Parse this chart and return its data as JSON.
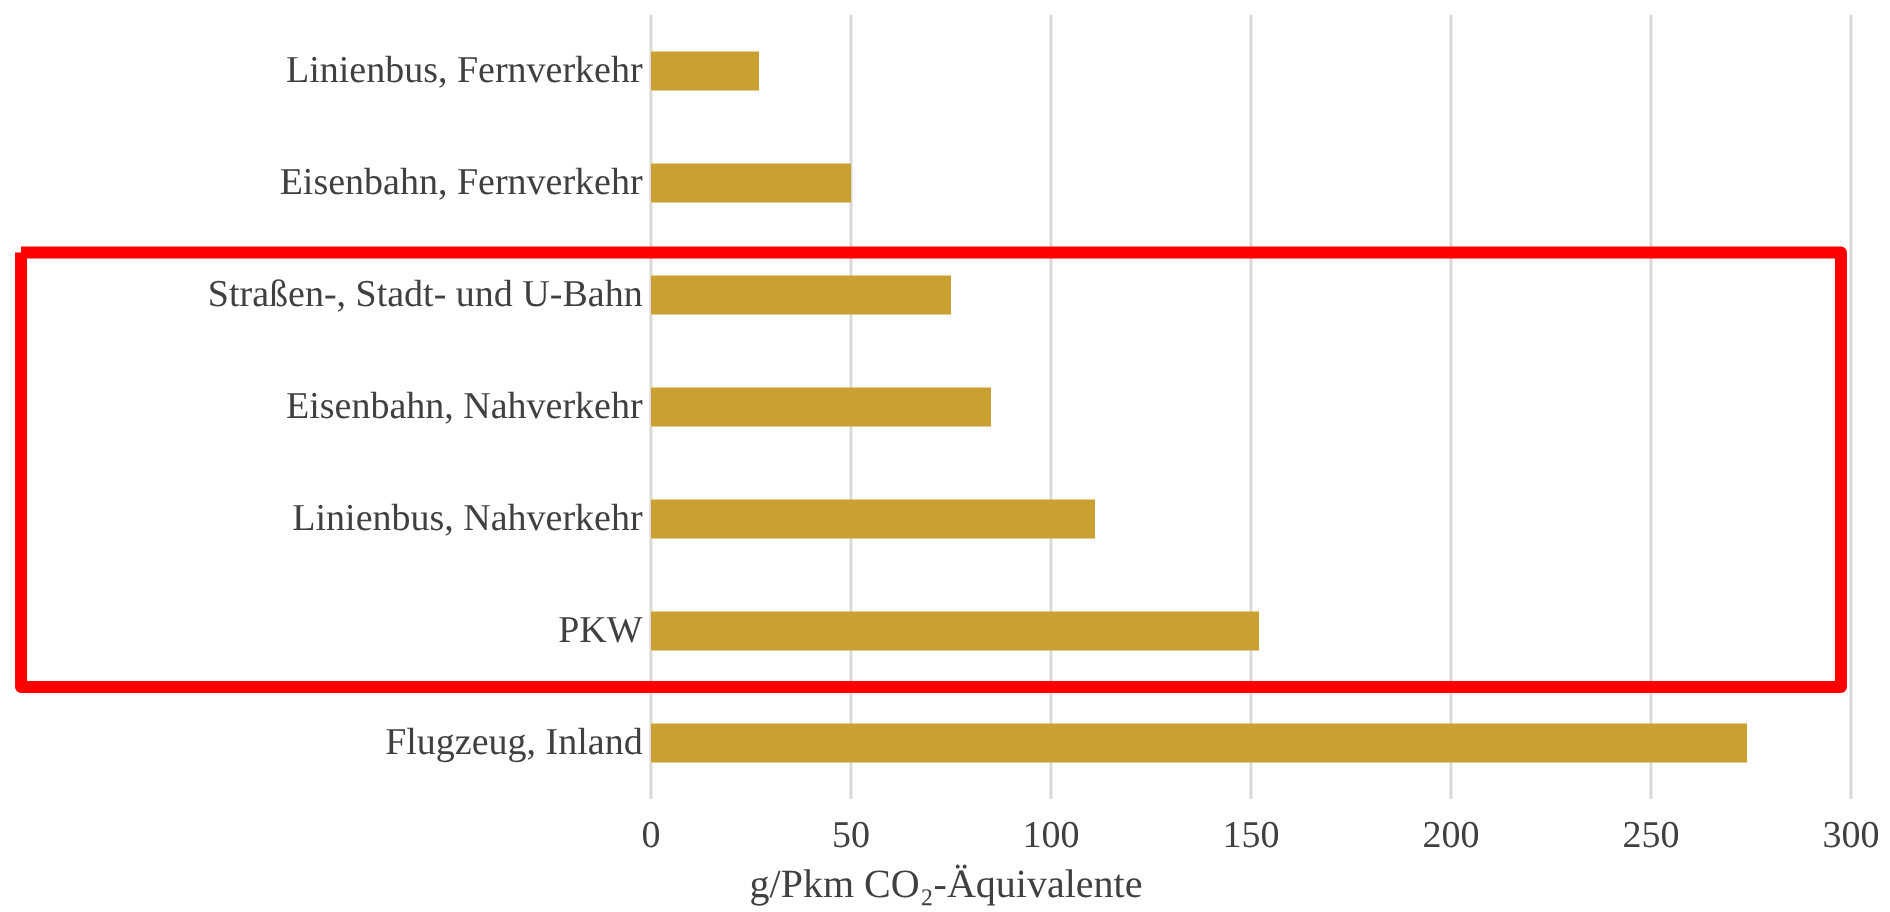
{
  "chart_data": {
    "type": "bar",
    "orientation": "horizontal",
    "xlabel": "g/Pkm CO₂-Äquivalente",
    "categories": [
      "Linienbus, Fernverkehr",
      "Eisenbahn, Fernverkehr",
      "Straßen-, Stadt- und U-Bahn",
      "Eisenbahn, Nahverkehr",
      "Linienbus, Nahverkehr",
      "PKW",
      "Flugzeug, Inland"
    ],
    "values": [
      27,
      50,
      75,
      85,
      111,
      152,
      274
    ],
    "color": "#c9a032",
    "xlim": [
      0,
      300
    ],
    "xticks": [
      0,
      50,
      100,
      150,
      200,
      250,
      300
    ],
    "grid": "x"
  }
}
